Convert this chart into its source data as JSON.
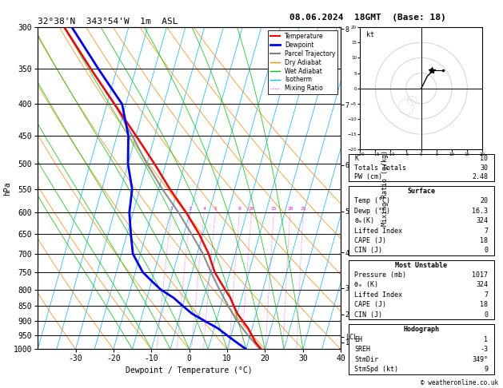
{
  "title_left": "32°38'N  343°54'W  1m  ASL",
  "title_date": "08.06.2024  18GMT  (Base: 18)",
  "xlabel": "Dewpoint / Temperature (°C)",
  "ylabel_left": "hPa",
  "ylabel_right_mr": "Mixing Ratio (g/kg)",
  "pressure_levels": [
    300,
    350,
    400,
    450,
    500,
    550,
    600,
    650,
    700,
    750,
    800,
    850,
    900,
    950,
    1000
  ],
  "pressure_ticks": [
    300,
    350,
    400,
    450,
    500,
    550,
    600,
    650,
    700,
    750,
    800,
    850,
    900,
    950,
    1000
  ],
  "temp_ticks": [
    -30,
    -20,
    -10,
    0,
    10,
    20,
    30,
    40
  ],
  "skew_factor": 0.6,
  "isotherm_temps": [
    -40,
    -35,
    -30,
    -25,
    -20,
    -15,
    -10,
    -5,
    0,
    5,
    10,
    15,
    20,
    25,
    30,
    35,
    40
  ],
  "dry_adiabat_temps": [
    -40,
    -30,
    -20,
    -10,
    0,
    10,
    20,
    30,
    40,
    50,
    60,
    70,
    80
  ],
  "wet_adiabat_temps": [
    -15,
    -10,
    -5,
    0,
    5,
    10,
    15,
    20,
    25,
    30
  ],
  "mixing_ratio_values": [
    2,
    3,
    4,
    5,
    8,
    10,
    15,
    20,
    25
  ],
  "color_isotherm": "#00bfff",
  "color_dry_adiabat": "#ff8c00",
  "color_wet_adiabat": "#00cc00",
  "color_mixing_ratio": "#ff00ff",
  "color_temperature": "#ff0000",
  "color_dewpoint": "#0000ff",
  "color_parcel": "#808080",
  "color_isobar": "#000000",
  "color_background": "#ffffff",
  "temperature_data": {
    "pressure": [
      1017,
      1000,
      975,
      950,
      925,
      900,
      875,
      850,
      825,
      800,
      775,
      750,
      700,
      650,
      600,
      550,
      500,
      450,
      400,
      350,
      300
    ],
    "temp": [
      20,
      19,
      17,
      15.5,
      14,
      12,
      10,
      8.5,
      7,
      5,
      3,
      1,
      -2,
      -6,
      -11,
      -17,
      -23,
      -30,
      -38,
      -47,
      -57
    ]
  },
  "dewpoint_data": {
    "pressure": [
      1017,
      1000,
      975,
      950,
      925,
      900,
      875,
      850,
      825,
      800,
      775,
      750,
      700,
      650,
      600,
      550,
      500,
      450,
      400,
      350,
      300
    ],
    "dewp": [
      16.3,
      15,
      12,
      9,
      6,
      2,
      -2,
      -5,
      -8,
      -12,
      -15,
      -18,
      -22,
      -24,
      -26,
      -27,
      -30,
      -32,
      -36,
      -45,
      -55
    ]
  },
  "parcel_data": {
    "pressure": [
      1017,
      950,
      900,
      850,
      800,
      750,
      700,
      650,
      600,
      550,
      500,
      450,
      400,
      350,
      300
    ],
    "temp": [
      20,
      14.5,
      10.5,
      7,
      3.5,
      0,
      -3.5,
      -8,
      -13,
      -19,
      -25,
      -31,
      -38,
      -47,
      -57
    ]
  },
  "km_tick_pressures": [
    302,
    401,
    502,
    597,
    697,
    795,
    878
  ],
  "km_tick_labels": [
    "8",
    "7",
    "6",
    "5",
    "4",
    "3",
    "2"
  ],
  "lcl_pressure": 955,
  "lcl_label": "LCL",
  "km_1_pressure": 975,
  "km_1_label": "1",
  "surface_data": {
    "K": 10,
    "TotalsTotal": 30,
    "PW_cm": 2.48,
    "Temp_C": 20,
    "Dewp_C": 16.3,
    "theta_e_K": 324,
    "LiftedIndex": 7,
    "CAPE_J": 18,
    "CIN_J": 0
  },
  "most_unstable": {
    "Pressure_mb": 1017,
    "theta_e_K": 324,
    "LiftedIndex": 7,
    "CAPE_J": 18,
    "CIN_J": 0
  },
  "hodograph": {
    "EH": 1,
    "SREH": -3,
    "StmDir": "349°",
    "StmSpd_kt": 9
  },
  "copyright": "© weatheronline.co.uk"
}
